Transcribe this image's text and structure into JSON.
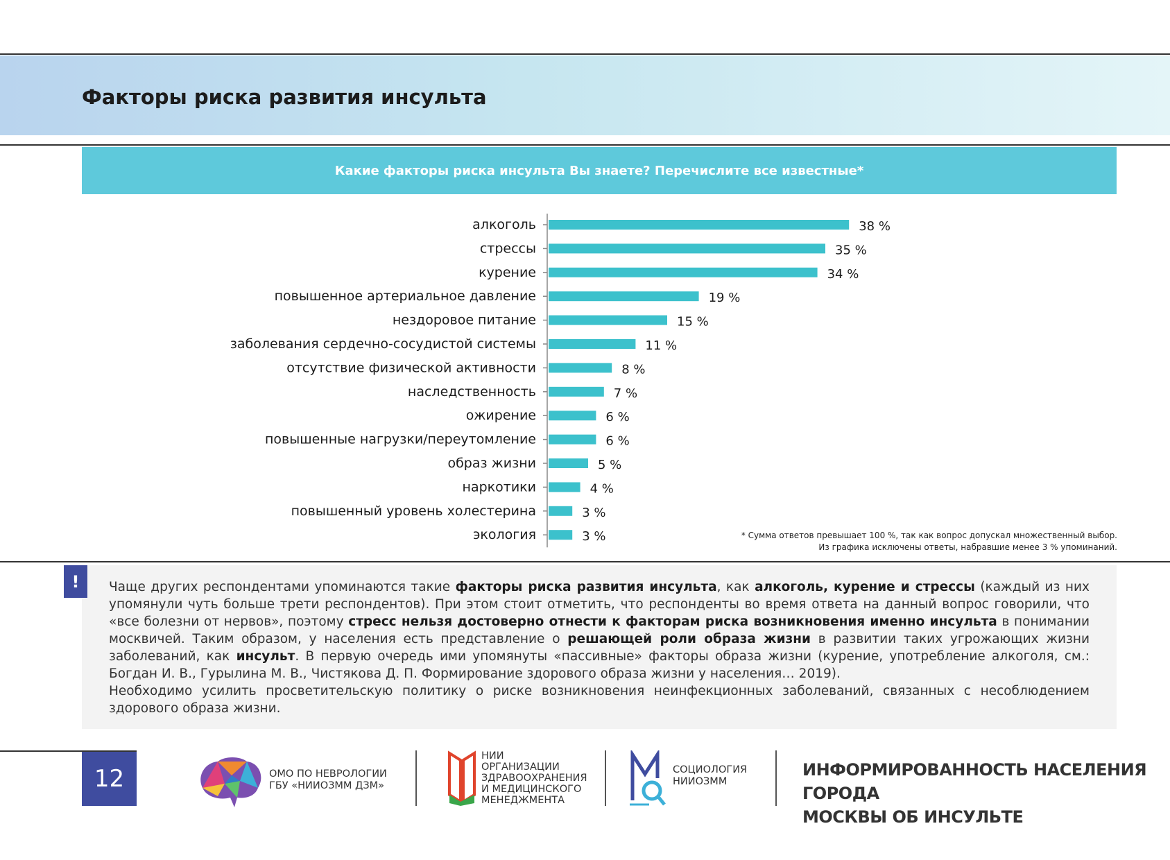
{
  "header": {
    "title": "Факторы риска развития инсульта"
  },
  "question": "Какие факторы риска инсульта Вы знаете? Перечислите все известные*",
  "chart_data": {
    "type": "bar",
    "orientation": "horizontal",
    "categories": [
      "алкоголь",
      "стрессы",
      "курение",
      "повышенное артериальное давление",
      "нездоровое питание",
      "заболевания сердечно-сосудистой системы",
      "отсутствие физической активности",
      "наследственность",
      "ожирение",
      "повышенные нагрузки/переутомление",
      "образ жизни",
      "наркотики",
      "повышенный уровень холестерина",
      "экология"
    ],
    "values": [
      38,
      35,
      34,
      19,
      15,
      11,
      8,
      7,
      6,
      6,
      5,
      4,
      3,
      3
    ],
    "value_labels": [
      "38 %",
      "35 %",
      "34 %",
      "19 %",
      "15 %",
      "11 %",
      "8 %",
      "7 %",
      "6 %",
      "6 %",
      "5 %",
      "4 %",
      "3 %",
      "3 %"
    ],
    "xlim": [
      0,
      40
    ],
    "bar_color": "#3cc1cc",
    "grid": false
  },
  "footnote": {
    "line1": "* Сумма ответов превышает 100 %, так как вопрос допускал множественный выбор.",
    "line2": "Из графика исключены ответы, набравшие менее 3 % упоминаний."
  },
  "info": {
    "marker": "!",
    "p1": [
      {
        "t": "Чаще других респондентами упоминаются такие ",
        "b": false
      },
      {
        "t": "факторы риска развития инсульта",
        "b": true
      },
      {
        "t": ", как ",
        "b": false
      },
      {
        "t": "алкоголь, курение и стрессы",
        "b": true
      },
      {
        "t": " (каждый из них упомянули чуть больше трети респондентов). При этом стоит отметить, что респонденты во время ответа на данный вопрос говорили, что «все болезни от нервов», поэтому ",
        "b": false
      },
      {
        "t": "стресс нельзя достоверно отнести к факторам риска возникновения именно инсульта",
        "b": true
      },
      {
        "t": " в понимании москвичей. Таким образом, у населения есть представление о ",
        "b": false
      },
      {
        "t": "решающей роли образа жизни",
        "b": true
      },
      {
        "t": " в развитии таких угрожающих жизни заболеваний, как ",
        "b": false
      },
      {
        "t": "инсульт",
        "b": true
      },
      {
        "t": ". В первую очередь ими упомянуты «пассивные» факторы образа жизни (курение, употребление алкоголя, см.: Богдан И. В., Гурылина М. В., Чистякова Д. П. Формирование здорового образа жизни у населения… 2019).",
        "b": false
      }
    ],
    "p2": "Необходимо усилить просветительскую политику о риске возникновения неинфекционных заболеваний, связанных с несоблюдением здорового образа жизни."
  },
  "footer": {
    "page_number": "12",
    "logo1": {
      "line1": "ОМО ПО НЕВРОЛОГИИ",
      "line2": "ГБУ «НИИОЗММ ДЗМ»"
    },
    "logo2": {
      "line1": "НИИ",
      "line2": "ОРГАНИЗАЦИИ",
      "line3": "ЗДРАВООХРАНЕНИЯ",
      "line4": "И МЕДИЦИНСКОГО",
      "line5": "МЕНЕДЖМЕНТА"
    },
    "logo3": {
      "line1": "СОЦИОЛОГИЯ",
      "line2": "НИИОЗММ"
    },
    "report_title": {
      "line1": "ИНФОРМИРОВАННОСТЬ НАСЕЛЕНИЯ ГОРОДА",
      "line2": "МОСКВЫ ОБ  ИНСУЛЬТЕ"
    }
  }
}
